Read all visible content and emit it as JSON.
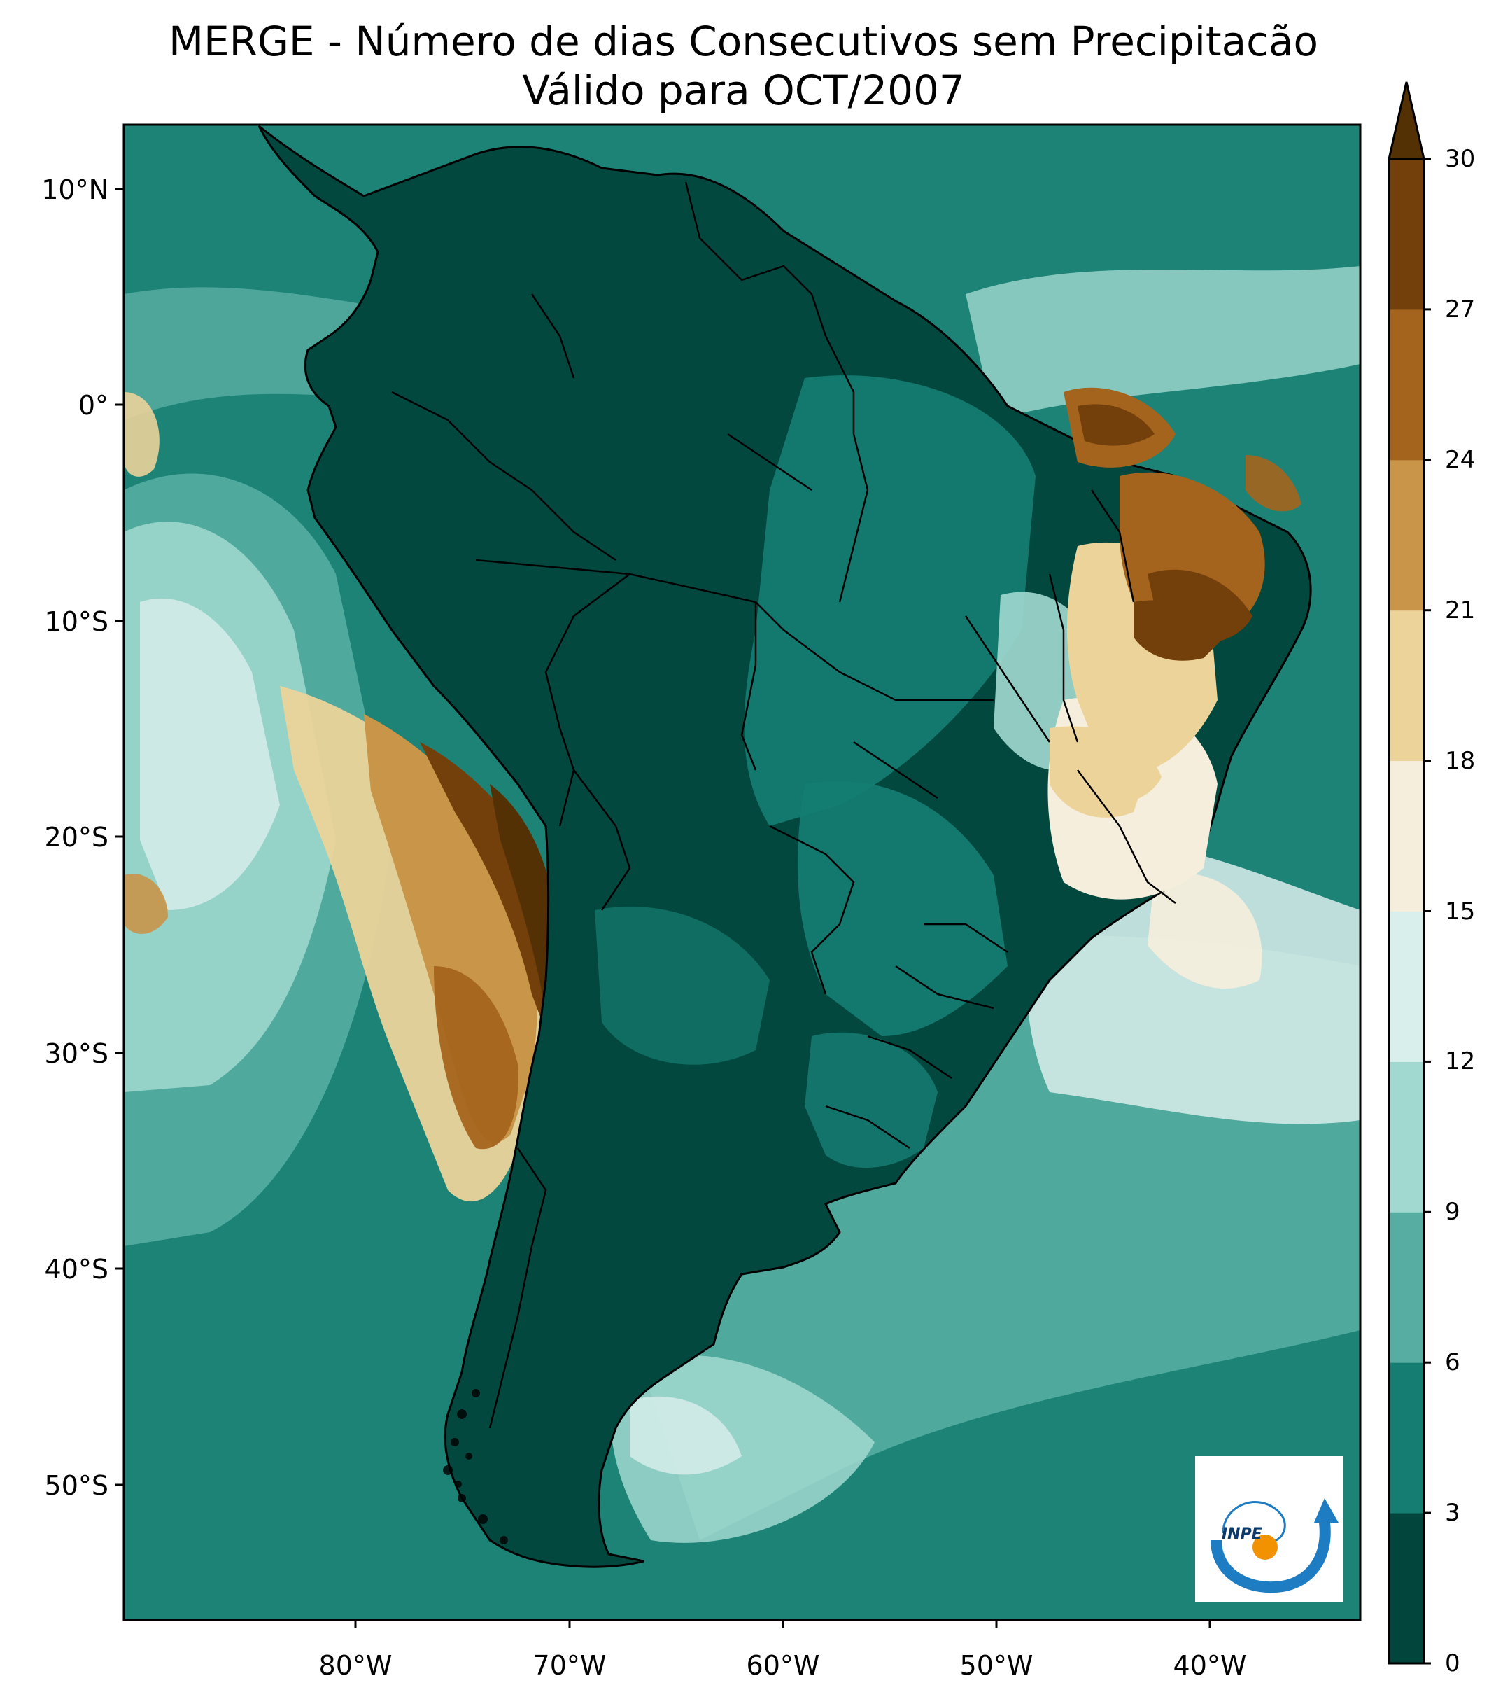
{
  "title_line1": "MERGE - Número de dias Consecutivos sem Precipitacão",
  "title_line2": "Válido para OCT/2007",
  "lat_labels": [
    "10°N",
    "0°",
    "10°S",
    "20°S",
    "30°S",
    "40°S",
    "50°S"
  ],
  "lon_labels": [
    "80°W",
    "70°W",
    "60°W",
    "50°W",
    "40°W"
  ],
  "colorbar": {
    "ticks": [
      "0",
      "3",
      "6",
      "9",
      "12",
      "15",
      "18",
      "21",
      "24",
      "27",
      "30"
    ],
    "colors": [
      "#01453c",
      "#157d72",
      "#57ada1",
      "#a1d9d0",
      "#d9efec",
      "#f6eedd",
      "#ebd39a",
      "#c99549",
      "#a5641d",
      "#733f0b",
      "#543005"
    ],
    "extend": "max"
  },
  "logo": {
    "text": "INPE",
    "colors": {
      "arc": "#1d7cc2",
      "sun": "#f39200"
    }
  },
  "colors": {
    "land": "#03483f",
    "ocean": "#1d8377"
  }
}
